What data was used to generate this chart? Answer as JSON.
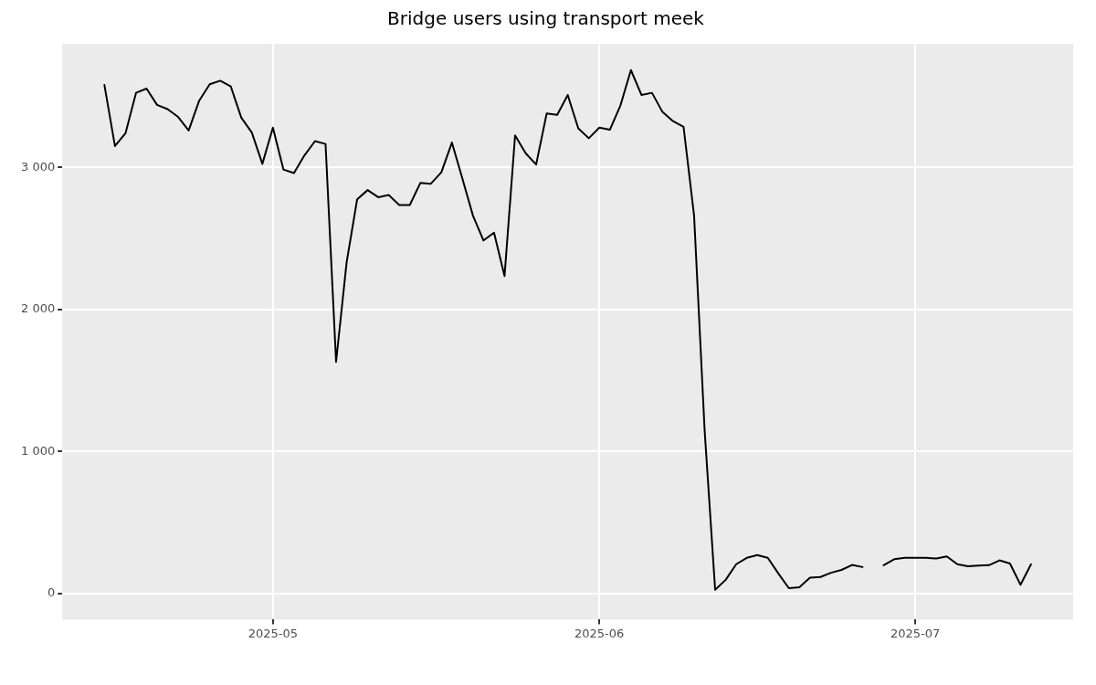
{
  "chart_data": {
    "type": "line",
    "title": "Bridge users using transport meek",
    "x": [
      "2025-04-15",
      "2025-04-16",
      "2025-04-17",
      "2025-04-18",
      "2025-04-19",
      "2025-04-20",
      "2025-04-21",
      "2025-04-22",
      "2025-04-23",
      "2025-04-24",
      "2025-04-25",
      "2025-04-26",
      "2025-04-27",
      "2025-04-28",
      "2025-04-29",
      "2025-04-30",
      "2025-05-01",
      "2025-05-02",
      "2025-05-03",
      "2025-05-04",
      "2025-05-05",
      "2025-05-06",
      "2025-05-07",
      "2025-05-08",
      "2025-05-09",
      "2025-05-10",
      "2025-05-11",
      "2025-05-12",
      "2025-05-13",
      "2025-05-14",
      "2025-05-15",
      "2025-05-16",
      "2025-05-17",
      "2025-05-18",
      "2025-05-19",
      "2025-05-20",
      "2025-05-21",
      "2025-05-22",
      "2025-05-23",
      "2025-05-24",
      "2025-05-25",
      "2025-05-26",
      "2025-05-27",
      "2025-05-28",
      "2025-05-29",
      "2025-05-30",
      "2025-05-31",
      "2025-06-01",
      "2025-06-02",
      "2025-06-03",
      "2025-06-04",
      "2025-06-05",
      "2025-06-06",
      "2025-06-07",
      "2025-06-08",
      "2025-06-09",
      "2025-06-10",
      "2025-06-11",
      "2025-06-12",
      "2025-06-13",
      "2025-06-14",
      "2025-06-15",
      "2025-06-16",
      "2025-06-17",
      "2025-06-18",
      "2025-06-19",
      "2025-06-20",
      "2025-06-21",
      "2025-06-22",
      "2025-06-23",
      "2025-06-24",
      "2025-06-25",
      "2025-06-26",
      "2025-06-27",
      "2025-06-28",
      "2025-06-29",
      "2025-06-30",
      "2025-07-01",
      "2025-07-02",
      "2025-07-03",
      "2025-07-04",
      "2025-07-05",
      "2025-07-06",
      "2025-07-07",
      "2025-07-08",
      "2025-07-09",
      "2025-07-10",
      "2025-07-11",
      "2025-07-12"
    ],
    "series": [
      {
        "color": "#000000",
        "values": [
          3580,
          3150,
          3240,
          3525,
          3555,
          3440,
          3410,
          3355,
          3260,
          3470,
          3585,
          3610,
          3570,
          3350,
          3245,
          3025,
          3280,
          2985,
          2960,
          3085,
          3185,
          3165,
          1630,
          2330,
          2775,
          2840,
          2790,
          2805,
          2735,
          2735,
          2890,
          2885,
          2965,
          3175,
          2920,
          2660,
          2485,
          2540,
          2235,
          3225,
          3100,
          3020,
          3380,
          3370,
          3510,
          3275,
          3205,
          3280,
          3265,
          3435,
          3685,
          3510,
          3525,
          3390,
          3325,
          3285,
          2660,
          1150,
          25,
          95,
          205,
          250,
          270,
          250,
          140,
          36,
          43,
          110,
          115,
          145,
          165,
          200,
          185,
          null,
          198,
          240,
          250,
          250,
          250,
          245,
          260,
          205,
          190,
          195,
          198,
          232,
          210,
          60,
          205
        ]
      }
    ],
    "xlim": [
      "2025-04-11",
      "2025-07-16"
    ],
    "xticks": [
      "2025-05",
      "2025-06",
      "2025-07"
    ],
    "ylim": [
      -185,
      3870
    ],
    "yticks": [
      0,
      {
        "value": 1000,
        "label": "1 000"
      },
      {
        "value": 2000,
        "label": "2 000"
      },
      {
        "value": 3000,
        "label": "3 000"
      }
    ],
    "grid": true,
    "legend": false,
    "marker": "none",
    "line_style": "solid"
  }
}
